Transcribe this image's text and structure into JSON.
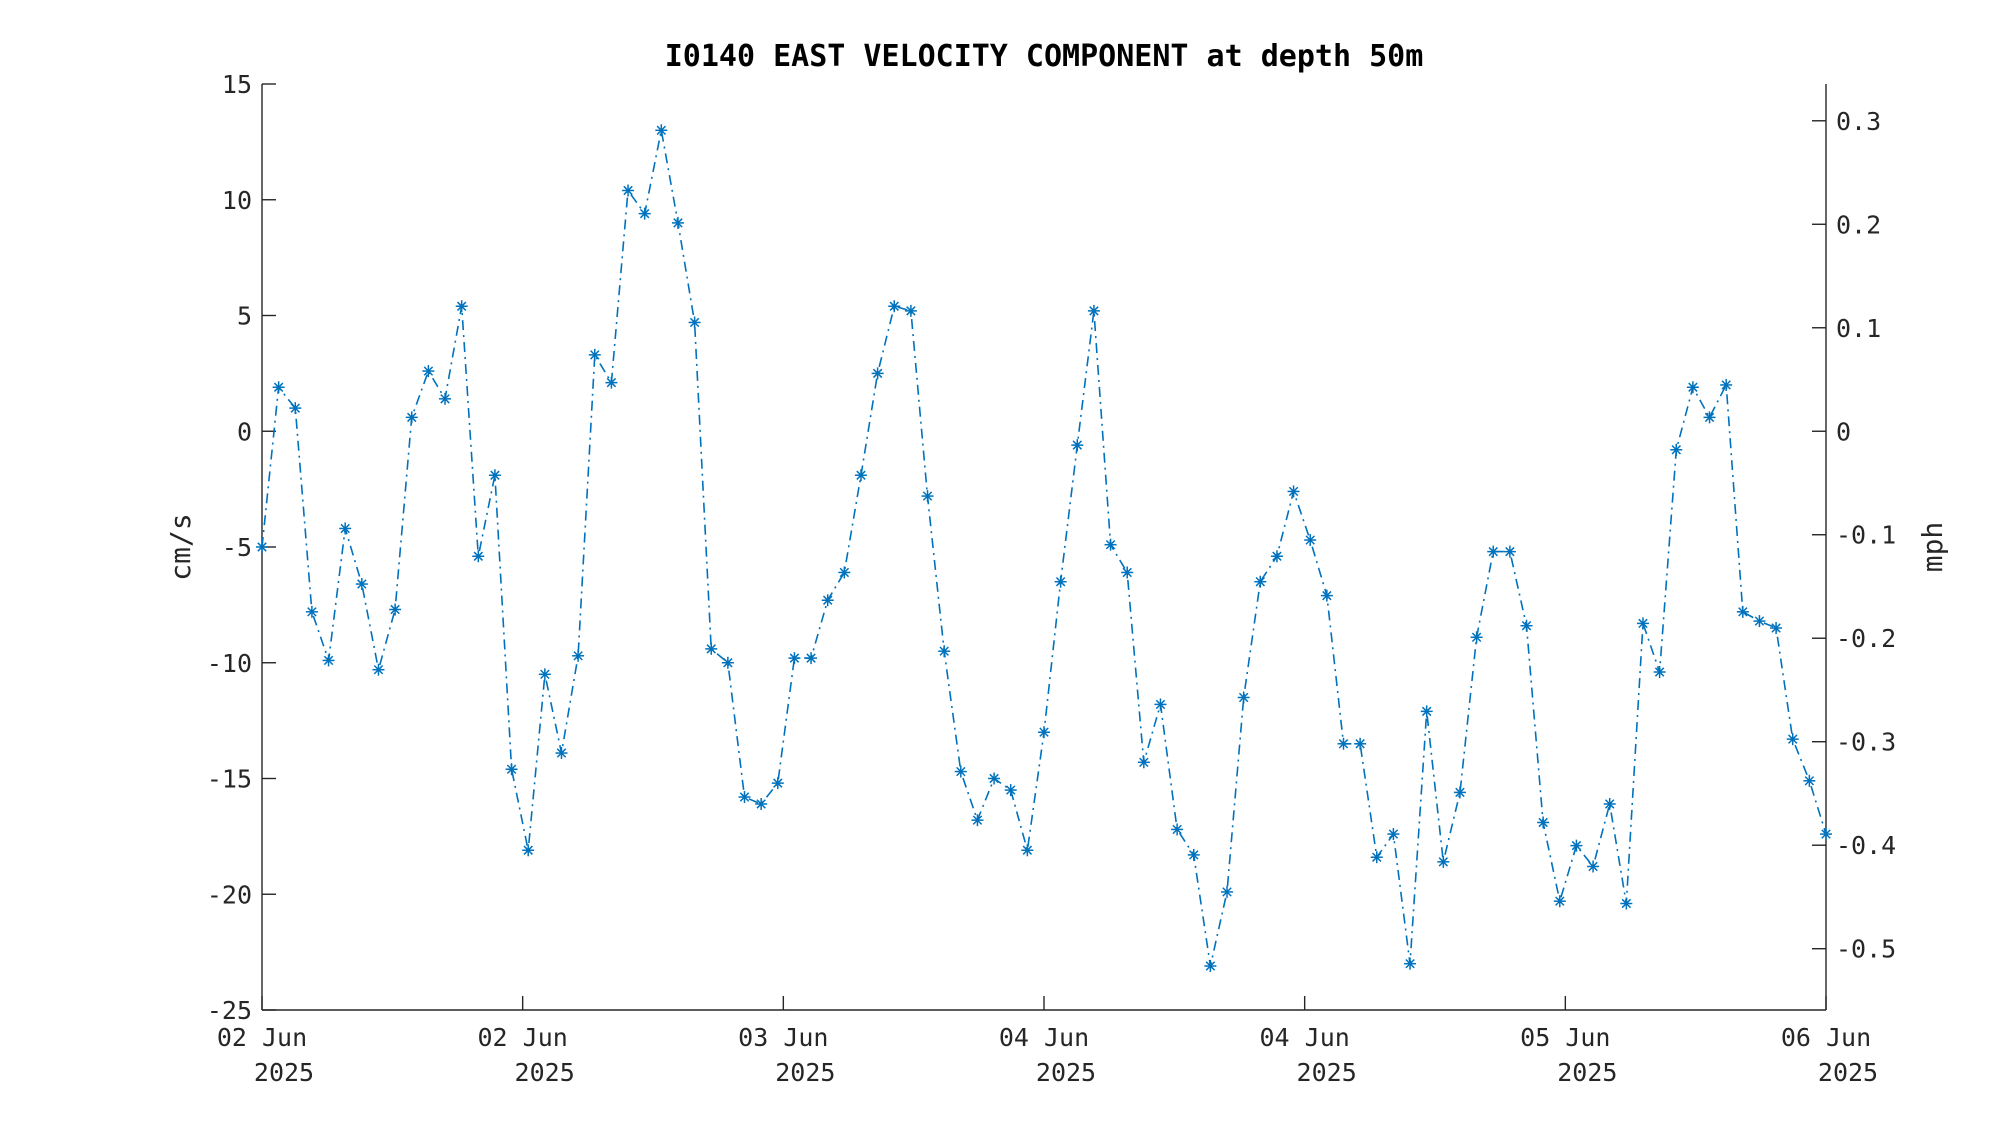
{
  "chart_data": {
    "type": "line",
    "title": "I0140 EAST VELOCITY COMPONENT at depth 50m",
    "ylabel": "cm/s",
    "y2label": "mph",
    "ylim": [
      -25,
      15
    ],
    "y_ticks": [
      "15",
      "10",
      "5",
      "0",
      "-5",
      "-10",
      "-15",
      "-20",
      "-25"
    ],
    "y2_ticks": [
      "0.3",
      "0.2",
      "0.1",
      "0",
      "-0.1",
      "-0.2",
      "-0.3",
      "-0.4",
      "-0.5"
    ],
    "x_ticks": [
      {
        "day": "02 Jun",
        "year": "2025"
      },
      {
        "day": "02 Jun",
        "year": "2025"
      },
      {
        "day": "03 Jun",
        "year": "2025"
      },
      {
        "day": "04 Jun",
        "year": "2025"
      },
      {
        "day": "04 Jun",
        "year": "2025"
      },
      {
        "day": "05 Jun",
        "year": "2025"
      },
      {
        "day": "06 Jun",
        "year": "2025"
      }
    ],
    "line_style": "dash-dot",
    "marker": "asterisk",
    "grid": false,
    "series": [
      {
        "color": "#0072BD",
        "values": [
          -5.0,
          1.9,
          1.0,
          -7.8,
          -9.9,
          -4.2,
          -6.6,
          -10.3,
          -7.7,
          0.6,
          2.6,
          1.4,
          5.4,
          -5.4,
          -1.9,
          -14.6,
          -18.1,
          -10.5,
          -13.9,
          -9.7,
          3.3,
          2.1,
          10.4,
          9.4,
          13.0,
          9.0,
          4.7,
          -9.4,
          -10.0,
          -15.8,
          -16.1,
          -15.2,
          -9.8,
          -9.8,
          -7.3,
          -6.1,
          -1.9,
          2.5,
          5.4,
          5.2,
          -2.8,
          -9.5,
          -14.7,
          -16.8,
          -15.0,
          -15.5,
          -18.1,
          -13.0,
          -6.5,
          -0.6,
          5.2,
          -4.9,
          -6.1,
          -14.3,
          -11.8,
          -17.2,
          -18.3,
          -23.1,
          -19.9,
          -11.5,
          -6.5,
          -5.4,
          -2.6,
          -4.7,
          -7.1,
          -13.5,
          -13.5,
          -18.4,
          -17.4,
          -23.0,
          -12.1,
          -18.6,
          -15.6,
          -8.9,
          -5.2,
          -5.2,
          -8.4,
          -16.9,
          -20.3,
          -17.9,
          -18.8,
          -16.1,
          -20.4,
          -8.3,
          -10.4,
          -0.8,
          1.9,
          0.6,
          2.0,
          -7.8,
          -8.2,
          -8.5,
          -13.3,
          -15.1,
          -17.4
        ]
      }
    ]
  }
}
